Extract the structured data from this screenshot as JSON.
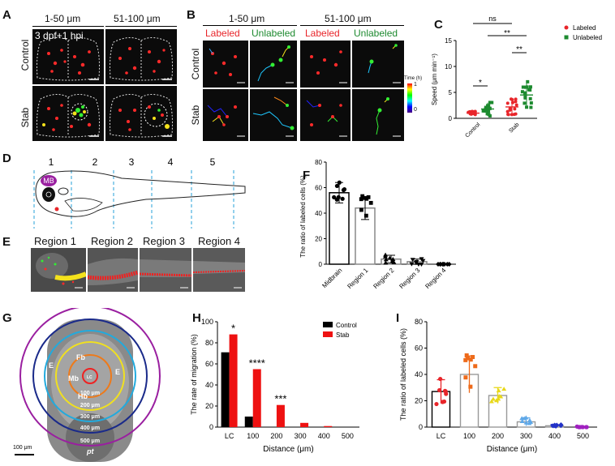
{
  "panels": {
    "A": {
      "letter": "A",
      "cols": [
        "1-50 μm",
        "51-100 μm"
      ],
      "rows": [
        "Control",
        "Stab"
      ],
      "overlay": "3 dpf+1 hpi"
    },
    "B": {
      "letter": "B",
      "groups": [
        "1-50 μm",
        "51-100 μm"
      ],
      "subcols": [
        "Labeled",
        "Unlabeled",
        "Labeled",
        "Unlabeled"
      ],
      "rows": [
        "Control",
        "Stab"
      ],
      "colorbar_title": "Time (h)",
      "colorbar_max": "1",
      "colorbar_min": "0"
    },
    "C": {
      "letter": "C",
      "ylabel": "Speed (μm min⁻¹)",
      "yticks": [
        "0",
        "5",
        "10",
        "15"
      ],
      "xticks": [
        "Control",
        "Stab"
      ],
      "legend": [
        "Labeled",
        "Unlabeled"
      ],
      "sig": [
        "ns",
        "**",
        "**",
        "*"
      ]
    },
    "D": {
      "letter": "D",
      "regions": [
        "1",
        "2",
        "3",
        "4",
        "5"
      ],
      "mb": "MB"
    },
    "E": {
      "letter": "E",
      "titles": [
        "Region 1",
        "Region 2",
        "Region 3",
        "Region 4"
      ]
    },
    "F": {
      "letter": "F",
      "ylabel": "The ratio of labeled cells (%)",
      "yticks": [
        "0",
        "20",
        "40",
        "60",
        "80"
      ],
      "xticks": [
        "Midbrain",
        "Region 1",
        "Region 2",
        "Region 3",
        "Region 4"
      ]
    },
    "G": {
      "letter": "G",
      "rings": [
        "100 μm",
        "200 μm",
        "300 μm",
        "400 μm",
        "500 μm"
      ],
      "labels": [
        "Fb",
        "Mb",
        "Hb",
        "E",
        "E",
        "LC",
        "pt"
      ],
      "scale": "100 μm"
    },
    "H": {
      "letter": "H",
      "ylabel": "The rate of migration (%)",
      "xlabel": "Distance (μm)",
      "yticks": [
        "0",
        "20",
        "40",
        "60",
        "80",
        "100"
      ],
      "legend": [
        "Control",
        "Stab"
      ],
      "sig": [
        "*",
        "****",
        "***"
      ]
    },
    "I": {
      "letter": "I",
      "ylabel": "The ratio of labeled cells (%)",
      "xlabel": "Distance (μm)",
      "yticks": [
        "0",
        "20",
        "40",
        "60",
        "80"
      ]
    }
  },
  "colors": {
    "labeled": "#e8252a",
    "unlabeled": "#1d8a2f",
    "control": "#000000",
    "stab": "#ee1111",
    "fluor_red": "#ff2a2a",
    "fluor_green": "#33ee33",
    "fluor_yellow": "#f4e21c"
  },
  "chart_data": [
    {
      "panel": "C",
      "type": "scatter",
      "categories": [
        "Control",
        "Stab"
      ],
      "series": [
        {
          "name": "Labeled",
          "mean": [
            1.0,
            2.2
          ],
          "sd": [
            0.3,
            1.5
          ]
        },
        {
          "name": "Unlabeled",
          "mean": [
            1.8,
            4.5
          ],
          "sd": [
            1.2,
            2.3
          ]
        }
      ],
      "ylabel": "Speed (μm min⁻¹)",
      "ylim": [
        0,
        15
      ],
      "legend_position": "top-right"
    },
    {
      "panel": "F",
      "type": "bar",
      "categories": [
        "Midbrain",
        "Region 1",
        "Region 2",
        "Region 3",
        "Region 4"
      ],
      "values": [
        56,
        44,
        4,
        2,
        0
      ],
      "errors": [
        8,
        9,
        3,
        2,
        0
      ],
      "ylabel": "The ratio of labeled cells (%)",
      "ylim": [
        0,
        80
      ]
    },
    {
      "panel": "H",
      "type": "bar",
      "categories": [
        "LC",
        "100",
        "200",
        "300",
        "400",
        "500"
      ],
      "series": [
        {
          "name": "Control",
          "values": [
            71,
            10,
            0,
            0,
            0,
            0
          ]
        },
        {
          "name": "Stab",
          "values": [
            88,
            55,
            21,
            4,
            1,
            0
          ]
        }
      ],
      "xlabel": "Distance (μm)",
      "ylabel": "The rate of migration (%)",
      "ylim": [
        0,
        100
      ],
      "legend_position": "top-right"
    },
    {
      "panel": "I",
      "type": "bar",
      "categories": [
        "LC",
        "100",
        "200",
        "300",
        "400",
        "500"
      ],
      "values": [
        27,
        40,
        24,
        4,
        1,
        0
      ],
      "errors": [
        9,
        14,
        6,
        3,
        1,
        0
      ],
      "bar_colors": [
        "#e8252a",
        "#ee6a1a",
        "#e8d81a",
        "#5fa8e8",
        "#2232c8",
        "#a020c0"
      ],
      "xlabel": "Distance (μm)",
      "ylabel": "The ratio of labeled cells (%)",
      "ylim": [
        0,
        80
      ]
    }
  ]
}
